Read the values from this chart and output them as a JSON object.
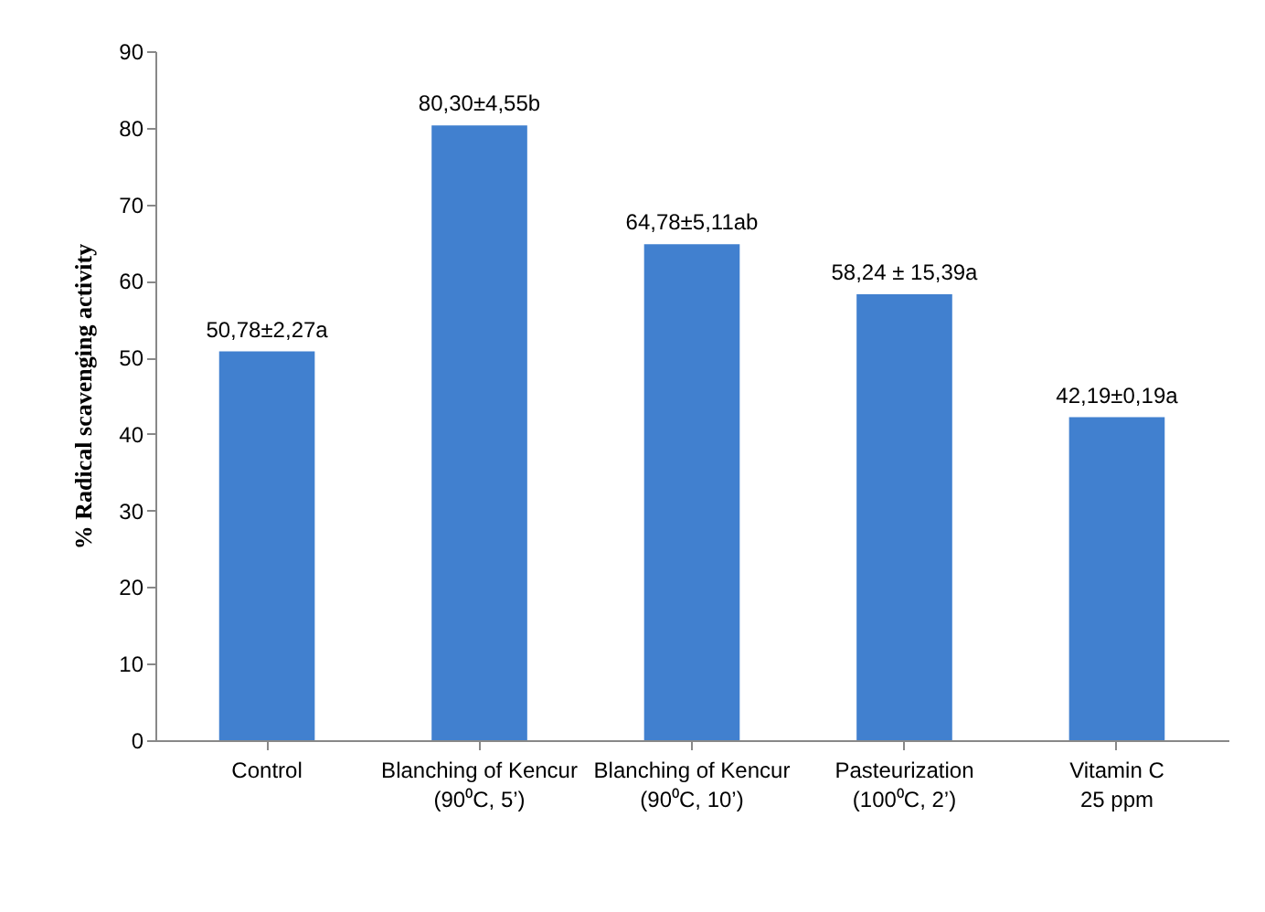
{
  "chart_data": {
    "type": "bar",
    "ylabel": "% Radical scavenging activity",
    "categories": [
      "Control",
      "Blanching of Kencur\n(90⁰C, 5’)",
      "Blanching of Kencur\n(90⁰C, 10’)",
      "Pasteurization\n(100⁰C, 2’)",
      "Vitamin C\n25 ppm"
    ],
    "values": [
      50.78,
      80.3,
      64.78,
      58.24,
      42.19
    ],
    "value_labels": [
      "50,78±2,27a",
      "80,30±4,55b",
      "64,78±5,11ab",
      "58,24 ± 15,39a",
      "42,19±0,19a"
    ],
    "color": "#4180cf",
    "ylim": [
      0,
      90
    ],
    "yticks": [
      0,
      10,
      20,
      30,
      40,
      50,
      60,
      70,
      80,
      90
    ],
    "grid": false
  }
}
